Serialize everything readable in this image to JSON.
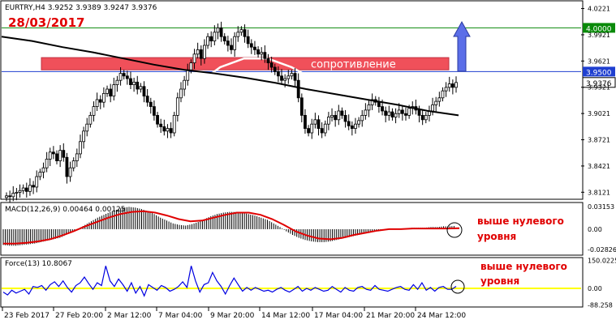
{
  "header": {
    "symbol_line": "EURTRY,H4  3.9252 3.9389 3.9247 3.9376",
    "date": "28/03/2017"
  },
  "colors": {
    "candle": "#000000",
    "bull_body": "#ffffff",
    "ma": "#000000",
    "band": "#ffffff",
    "green_line": "#0a8a0a",
    "blue_line": "#1f3fd0",
    "zone_fill": "#f0505a",
    "arrow_fill": "#5b6ee8",
    "macd_signal": "#e00000",
    "force_line": "#0000e0",
    "force_zero": "#ffff00",
    "annotation": "#e00000"
  },
  "chart_data": [
    {
      "type": "candlestick",
      "title": "EURTRY,H4",
      "ohlc_last": {
        "open": 3.9252,
        "high": 3.9389,
        "low": 3.9247,
        "close": 3.9376
      },
      "y_ticks": [
        "4.0221",
        "3.9921",
        "3.9621",
        "3.9321",
        "3.9021",
        "3.8721",
        "3.8421",
        "3.8121"
      ],
      "ylim": [
        3.805,
        4.03
      ],
      "x_ticks": [
        "23 Feb 2017",
        "27 Feb 20:00",
        "2 Mar 12:00",
        "7 Mar 04:00",
        "9 Mar 20:00",
        "14 Mar 12:00",
        "17 Mar 04:00",
        "21 Mar 20:00",
        "24 Mar 12:00"
      ],
      "levels": [
        {
          "value": 4.0,
          "label": "4.0000",
          "color": "green"
        },
        {
          "value": 3.95,
          "label": "3.9500",
          "color": "blue"
        }
      ],
      "last_price_label": "3.9376",
      "resistance_zone": {
        "from": 3.952,
        "to": 3.966,
        "label": "сопротивление"
      },
      "arrow": "up",
      "closes": [
        3.808,
        3.807,
        3.811,
        3.812,
        3.814,
        3.817,
        3.813,
        3.82,
        3.818,
        3.83,
        3.835,
        3.84,
        3.85,
        3.858,
        3.856,
        3.848,
        3.86,
        3.852,
        3.83,
        3.84,
        3.848,
        3.856,
        3.87,
        3.882,
        3.89,
        3.9,
        3.91,
        3.918,
        3.915,
        3.925,
        3.93,
        3.922,
        3.935,
        3.94,
        3.948,
        3.945,
        3.942,
        3.935,
        3.938,
        3.93,
        3.933,
        3.922,
        3.915,
        3.91,
        3.9,
        3.89,
        3.887,
        3.882,
        3.885,
        3.88,
        3.9,
        3.92,
        3.93,
        3.94,
        3.952,
        3.96,
        3.97,
        3.975,
        3.965,
        3.98,
        3.99,
        3.985,
        3.995,
        4.0,
        3.99,
        3.985,
        3.98,
        3.975,
        3.99,
        3.995,
        3.998,
        3.99,
        3.982,
        3.978,
        3.975,
        3.97,
        3.972,
        3.965,
        3.96,
        3.955,
        3.95,
        3.945,
        3.94,
        3.942,
        3.945,
        3.948,
        3.94,
        3.92,
        3.9,
        3.885,
        3.88,
        3.89,
        3.895,
        3.885,
        3.88,
        3.89,
        3.898,
        3.9,
        3.895,
        3.905,
        3.9,
        3.893,
        3.888,
        3.885,
        3.89,
        3.894,
        3.9,
        3.906,
        3.912,
        3.918,
        3.915,
        3.91,
        3.905,
        3.9,
        3.904,
        3.898,
        3.902,
        3.906,
        3.902,
        3.9,
        3.908,
        3.91,
        3.906,
        3.9,
        3.895,
        3.9,
        3.905,
        3.912,
        3.916,
        3.92,
        3.928,
        3.932,
        3.936,
        3.932,
        3.9376
      ],
      "series": [
        {
          "name": "MA",
          "values": [
            3.99,
            3.985,
            3.978,
            3.972,
            3.965,
            3.958,
            3.952,
            3.948,
            3.943,
            3.937,
            3.93,
            3.924,
            3.918,
            3.912,
            3.905,
            3.9
          ]
        },
        {
          "name": "Band",
          "values": [
            3.84,
            3.85,
            3.868,
            3.89,
            3.91,
            3.935,
            3.955,
            3.965,
            3.965,
            3.955,
            3.94,
            3.922,
            3.91,
            3.905,
            3.905,
            3.912,
            3.915
          ]
        }
      ]
    },
    {
      "type": "bar",
      "title": "MACD(12,26,9) 0.00464 0.00125",
      "y_ticks": [
        "0.03153",
        "0.00",
        "-0.02826"
      ],
      "ylim": [
        -0.035,
        0.036
      ],
      "histogram": [
        -0.022,
        -0.023,
        -0.023,
        -0.022,
        -0.021,
        -0.02,
        -0.018,
        -0.016,
        -0.014,
        -0.012,
        -0.008,
        -0.004,
        0.001,
        0.006,
        0.011,
        0.016,
        0.02,
        0.024,
        0.027,
        0.03,
        0.031,
        0.03,
        0.028,
        0.025,
        0.021,
        0.016,
        0.012,
        0.008,
        0.006,
        0.005,
        0.007,
        0.01,
        0.014,
        0.018,
        0.021,
        0.023,
        0.024,
        0.024,
        0.023,
        0.021,
        0.019,
        0.016,
        0.013,
        0.008,
        0.003,
        -0.003,
        -0.008,
        -0.012,
        -0.015,
        -0.017,
        -0.018,
        -0.018,
        -0.017,
        -0.015,
        -0.013,
        -0.011,
        -0.009,
        -0.007,
        -0.005,
        -0.003,
        -0.002,
        -0.001,
        0.0,
        0.001,
        0.001,
        0.002,
        0.002,
        0.002,
        0.003,
        0.003,
        0.004,
        0.004,
        0.0046
      ],
      "signal": [
        -0.02,
        -0.02,
        -0.019,
        -0.017,
        -0.014,
        -0.009,
        -0.003,
        0.004,
        0.01,
        0.016,
        0.021,
        0.024,
        0.025,
        0.023,
        0.019,
        0.014,
        0.011,
        0.012,
        0.016,
        0.02,
        0.023,
        0.023,
        0.02,
        0.014,
        0.006,
        -0.003,
        -0.009,
        -0.013,
        -0.014,
        -0.012,
        -0.008,
        -0.005,
        -0.002,
        0.0,
        0.0,
        0.001,
        0.001,
        0.001,
        0.001,
        0.0013
      ],
      "annotation": "выше нулевого уровня"
    },
    {
      "type": "line",
      "title": "Force(13) 10.8067",
      "y_ticks": [
        "150.0225",
        "0.00",
        "-88.258"
      ],
      "ylim": [
        -95,
        160
      ],
      "values": [
        -20,
        -35,
        -10,
        -25,
        -15,
        -5,
        -30,
        10,
        5,
        15,
        -10,
        20,
        35,
        10,
        40,
        5,
        -20,
        15,
        30,
        60,
        25,
        -5,
        30,
        15,
        120,
        40,
        10,
        50,
        20,
        -15,
        30,
        -25,
        10,
        -40,
        20,
        5,
        -10,
        15,
        5,
        -15,
        -5,
        10,
        35,
        5,
        120,
        40,
        -20,
        20,
        30,
        85,
        40,
        10,
        -30,
        15,
        55,
        20,
        -15,
        5,
        -10,
        5,
        -5,
        -15,
        -10,
        -20,
        -5,
        5,
        -10,
        -20,
        -5,
        10,
        -15,
        0,
        -10,
        5,
        -5,
        -15,
        -10,
        10,
        -5,
        -20,
        5,
        -10,
        -15,
        5,
        10,
        -5,
        -10,
        15,
        -5,
        -10,
        -15,
        -5,
        5,
        10,
        -5,
        -10,
        20,
        -5,
        30,
        -10,
        5,
        -15,
        5,
        10,
        -5,
        -5,
        10.8
      ],
      "annotation": "выше нулевого уровня"
    }
  ],
  "annotations": {
    "macd_note_line1": "выше нулевого",
    "macd_note_line2": "уровня",
    "force_note_line1": "выше нулевого",
    "force_note_line2": "уровня"
  }
}
